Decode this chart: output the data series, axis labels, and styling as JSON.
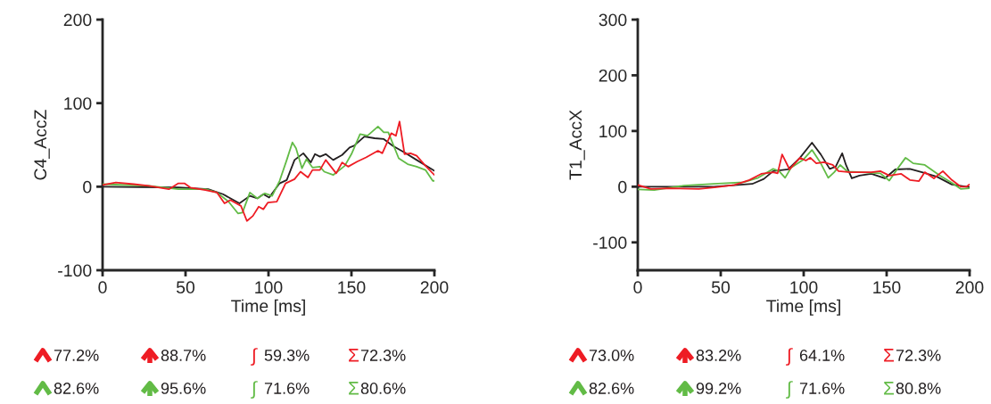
{
  "chart_data": [
    {
      "type": "line",
      "xlabel": "Time [ms]",
      "ylabel": "C4_AccZ",
      "xlim": [
        0,
        200
      ],
      "xticks": [
        0,
        50,
        100,
        150,
        200
      ],
      "ylim": [
        -100,
        200
      ],
      "yticks": [
        -100,
        0,
        100,
        200
      ],
      "grid": false,
      "legend": false,
      "annotations": [
        "77.2%",
        "88.7%",
        "∫ 59.3%",
        "Σ72.3%",
        "82.6%",
        "95.6%",
        "∫ 71.6%",
        "Σ80.6%"
      ],
      "series": [
        {
          "color": "#ee1c24",
          "x": [
            0,
            8,
            18.8,
            27.8,
            40,
            45.7,
            49.3,
            52.9,
            62,
            69,
            73.5,
            77,
            83.4,
            87,
            90.6,
            94.1,
            96.9,
            99.6,
            105,
            110.3,
            115.7,
            119.3,
            123.8,
            126.5,
            131,
            134.5,
            140.8,
            144.4,
            148,
            153.4,
            158.8,
            166,
            168.6,
            174,
            176.8,
            179,
            182,
            185.6,
            189.3,
            194.6,
            200
          ],
          "values": [
            2,
            5,
            3,
            1,
            -3,
            4,
            4,
            -1,
            -4,
            -7,
            -20,
            -16,
            -23,
            -41,
            -35,
            -24,
            -27,
            -19,
            -18,
            4,
            9,
            18,
            11,
            20,
            20,
            32,
            16,
            29,
            24,
            30,
            35,
            43,
            40,
            64,
            61,
            78,
            39,
            40,
            37,
            25,
            14
          ]
        },
        {
          "color": "#62bb46",
          "x": [
            0,
            27.8,
            45.7,
            62,
            69,
            76,
            81.6,
            84.3,
            88.8,
            93.3,
            97.8,
            102.2,
            106.7,
            111,
            114.4,
            116.6,
            120.2,
            122.9,
            126.5,
            131,
            133.6,
            139,
            146,
            150,
            155.2,
            159.7,
            166,
            169.5,
            172.2,
            178.5,
            183.9,
            189.3,
            194.6,
            199,
            200
          ],
          "values": [
            3,
            1,
            -3,
            -3,
            -7,
            -18,
            -32,
            -31,
            -7,
            -14,
            -8,
            -11,
            7,
            32,
            53,
            46,
            22,
            33,
            23,
            24,
            18,
            14,
            25,
            39,
            63,
            61,
            72,
            65,
            65,
            34,
            27,
            24,
            20,
            7,
            7
          ]
        },
        {
          "color": "#231f20",
          "x": [
            0,
            45.7,
            63.7,
            72.6,
            82.5,
            88.8,
            93.3,
            96.9,
            100.4,
            106.7,
            111,
            115.7,
            121,
            125.5,
            128,
            131,
            134.5,
            139,
            144.4,
            148.9,
            151.6,
            157.8,
            164,
            169.5,
            174.9,
            182,
            189.3,
            200
          ],
          "values": [
            0,
            -1,
            -3,
            -9,
            -20,
            -11,
            -14,
            -9,
            -13,
            4,
            8,
            32,
            40,
            29,
            39,
            36,
            39,
            32,
            38,
            47,
            49,
            60,
            58,
            57,
            49,
            41,
            32,
            19
          ]
        }
      ]
    },
    {
      "type": "line",
      "xlabel": "Time [ms]",
      "ylabel": "T1_AccX",
      "xlim": [
        0,
        200
      ],
      "xticks": [
        0,
        50,
        100,
        150,
        200
      ],
      "ylim": [
        -150,
        300
      ],
      "yticks": [
        -100,
        0,
        100,
        200,
        300
      ],
      "grid": false,
      "legend": false,
      "annotations": [
        "73.0%",
        "83.2%",
        "∫ 64.1%",
        "Σ72.3%",
        "82.6%",
        "99.2%",
        "∫ 71.6%",
        "Σ80.8%"
      ],
      "series": [
        {
          "color": "#ee1c24",
          "x": [
            0,
            8,
            18.8,
            36.8,
            47.5,
            58.3,
            67.3,
            74.4,
            81.6,
            84.3,
            87,
            91.5,
            97.8,
            101.3,
            104,
            107.6,
            112.1,
            117.5,
            121,
            128,
            133.6,
            140.8,
            146.2,
            151.6,
            158.8,
            164,
            169.5,
            173,
            178.5,
            183.9,
            189.3,
            194.6,
            198.2,
            200
          ],
          "values": [
            3,
            -4,
            -3,
            -4,
            -1,
            3,
            12,
            23,
            26,
            24,
            58,
            31,
            52,
            47,
            52,
            42,
            44,
            39,
            28,
            26,
            26,
            26,
            28,
            20,
            23,
            12,
            10,
            26,
            15,
            28,
            12,
            0,
            0,
            4
          ]
        },
        {
          "color": "#62bb46",
          "x": [
            0,
            9.9,
            27.8,
            45.7,
            63.7,
            72.6,
            81.6,
            85.2,
            88.8,
            92.4,
            99.6,
            105,
            110.3,
            114.8,
            118.4,
            122,
            126.5,
            135.4,
            146.2,
            151.6,
            157,
            161.4,
            166,
            173,
            182,
            189.3,
            194.6,
            200
          ],
          "values": [
            -5,
            -6,
            2,
            5,
            8,
            16,
            32,
            28,
            16,
            34,
            48,
            66,
            42,
            16,
            26,
            39,
            27,
            26,
            24,
            11,
            34,
            52,
            42,
            39,
            20,
            7,
            -4,
            -3
          ]
        },
        {
          "color": "#231f20",
          "x": [
            0,
            45.7,
            63.7,
            69,
            76,
            81.6,
            90.6,
            97.8,
            105,
            110.3,
            115.7,
            119.3,
            123.2,
            125.5,
            129,
            133.6,
            140.8,
            148.9,
            155.2,
            164,
            171.3,
            180.3,
            189.3,
            200
          ],
          "values": [
            0,
            0,
            4,
            5,
            14,
            28,
            31,
            52,
            79,
            58,
            32,
            36,
            60,
            39,
            15,
            20,
            23,
            15,
            31,
            32,
            26,
            18,
            4,
            -1
          ]
        }
      ]
    }
  ]
}
